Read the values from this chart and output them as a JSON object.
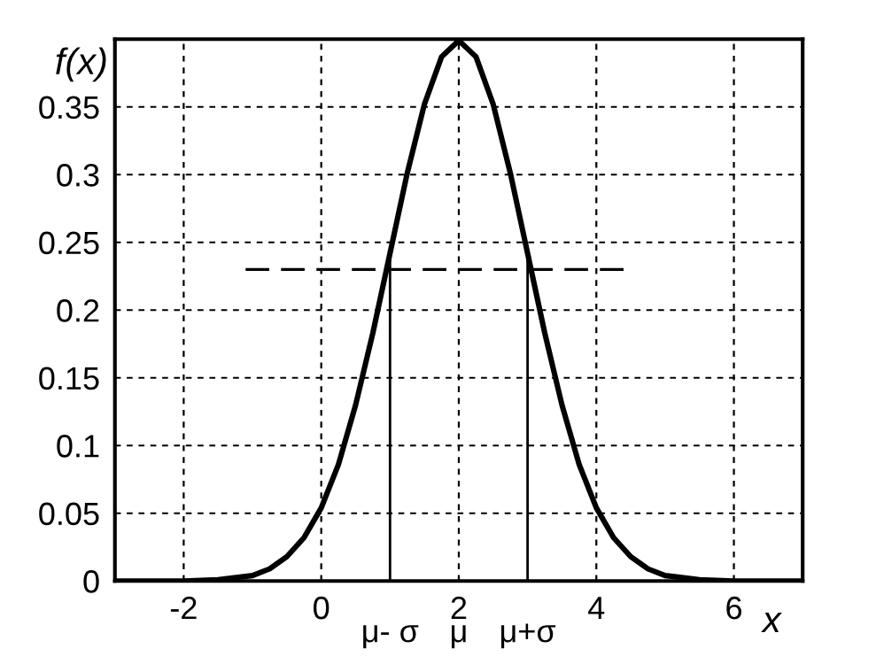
{
  "chart_data": {
    "type": "line",
    "xlabel": "x",
    "ylabel": "f(x)",
    "xlim": [
      -3,
      7
    ],
    "ylim": [
      0,
      0.4
    ],
    "xticks": [
      -2,
      0,
      2,
      4,
      6
    ],
    "yticks": [
      0,
      0.05,
      0.1,
      0.15,
      0.2,
      0.25,
      0.3,
      0.35
    ],
    "grid": true,
    "marker": "none",
    "series": [
      {
        "color": "#000000",
        "line_style": "solid",
        "x": [
          -3,
          -2.5,
          -2,
          -1.5,
          -1,
          -0.75,
          -0.5,
          -0.25,
          0,
          0.25,
          0.5,
          0.75,
          1,
          1.25,
          1.5,
          1.75,
          2,
          2.25,
          2.5,
          2.75,
          3,
          3.25,
          3.5,
          3.75,
          4,
          4.25,
          4.5,
          4.75,
          5,
          5.5,
          6,
          6.5,
          7
        ],
        "values": [
          0,
          0,
          0,
          0.001,
          0.004,
          0.009,
          0.018,
          0.032,
          0.054,
          0.086,
          0.13,
          0.183,
          0.242,
          0.301,
          0.352,
          0.387,
          0.399,
          0.387,
          0.352,
          0.301,
          0.242,
          0.183,
          0.13,
          0.086,
          0.054,
          0.032,
          0.018,
          0.009,
          0.004,
          0.001,
          0,
          0,
          0
        ]
      },
      {
        "color": "#000000",
        "line_style": "dashed",
        "x": [
          -1.1,
          4.4
        ],
        "values": [
          0.23,
          0.23
        ]
      },
      {
        "color": "#000000",
        "line_style": "solid",
        "x": [
          1,
          1
        ],
        "values": [
          0,
          0.242
        ]
      },
      {
        "color": "#000000",
        "line_style": "solid",
        "x": [
          3,
          3
        ],
        "values": [
          0,
          0.242
        ]
      }
    ],
    "annotations": [
      "μ- σ",
      "μ",
      "μ+σ"
    ]
  }
}
